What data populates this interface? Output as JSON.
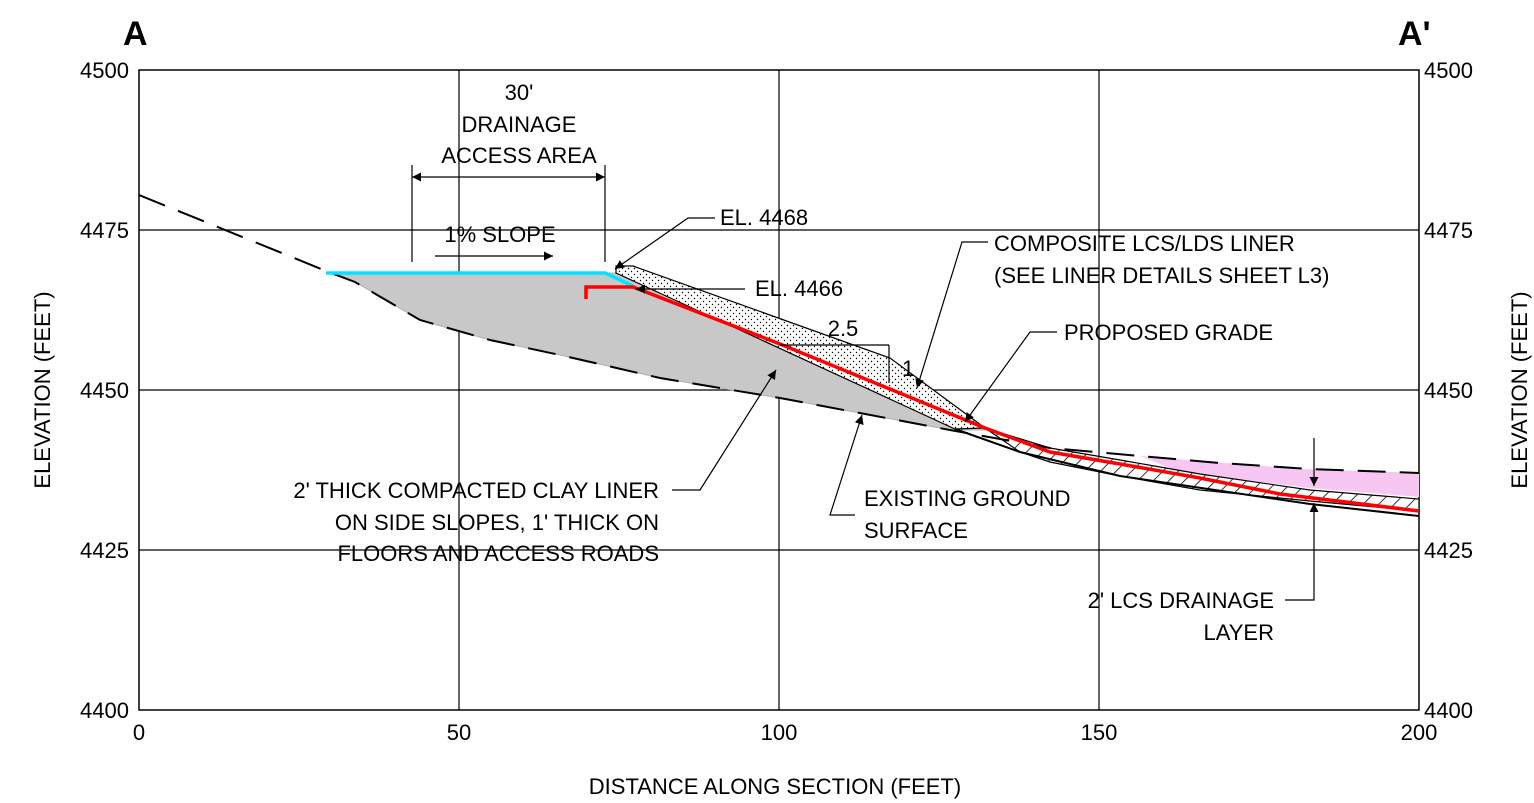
{
  "section": {
    "left_label": "A",
    "right_label": "A'"
  },
  "axes": {
    "xlabel": "DISTANCE ALONG SECTION (FEET)",
    "ylabel_left": "ELEVATION (FEET)",
    "ylabel_right": "ELEVATION (FEET)",
    "xlim": [
      0,
      200
    ],
    "ylim": [
      4400,
      4500
    ],
    "xticks": [
      "0",
      "50",
      "100",
      "150",
      "200"
    ],
    "yticks": [
      "4400",
      "4425",
      "4450",
      "4475",
      "4500"
    ],
    "grid": true
  },
  "annotations": {
    "drainage": [
      "30'",
      "DRAINAGE",
      "ACCESS AREA"
    ],
    "slope": "1% SLOPE",
    "el_4468": "EL. 4468",
    "el_4466": "EL. 4466",
    "ratio_run": "2.5",
    "ratio_rise": "1",
    "liner": [
      "COMPOSITE LCS/LDS LINER",
      "(SEE LINER DETAILS SHEET L3)"
    ],
    "proposed_grade": "PROPOSED GRADE",
    "clay_liner": [
      "2' THICK COMPACTED CLAY LINER",
      "ON SIDE SLOPES, 1' THICK ON",
      "FLOORS AND ACCESS ROADS"
    ],
    "existing_ground": [
      "EXISTING GROUND",
      "SURFACE"
    ],
    "lcs_layer": [
      "2' LCS DRAINAGE",
      "LAYER"
    ]
  },
  "colors": {
    "liner": "#ff0000",
    "access_surface": "#00e5ff",
    "fill": "#c8c8c8",
    "pond": "#f7c6f2"
  },
  "chart_data": {
    "type": "line",
    "xlabel": "DISTANCE ALONG SECTION (FEET)",
    "ylabel": "ELEVATION (FEET)",
    "xlim": [
      0,
      200
    ],
    "ylim": [
      4400,
      4500
    ],
    "series": [
      {
        "name": "EXISTING GROUND SURFACE",
        "x": [
          0,
          30,
          36,
          44,
          52,
          60,
          70,
          80,
          90,
          100,
          110,
          120,
          130,
          140,
          150,
          160,
          170,
          180,
          190,
          200
        ],
        "values": [
          4480.5,
          4468,
          4465,
          4461,
          4458,
          4456,
          4453,
          4450.5,
          4449.5,
          4448,
          4446.5,
          4445,
          4443.5,
          4442,
          4440.5,
          4439.5,
          4438.5,
          4437.8,
          4437.3,
          4436.8
        ]
      },
      {
        "name": "PROPOSED GRADE",
        "x": [
          70,
          73,
          79,
          100,
          120,
          133,
          143,
          155,
          170,
          180,
          200
        ],
        "values": [
          4466,
          4466,
          4466,
          4457,
          4449,
          4443.5,
          4440,
          4438,
          4436,
          4433,
          4431
        ]
      }
    ]
  }
}
